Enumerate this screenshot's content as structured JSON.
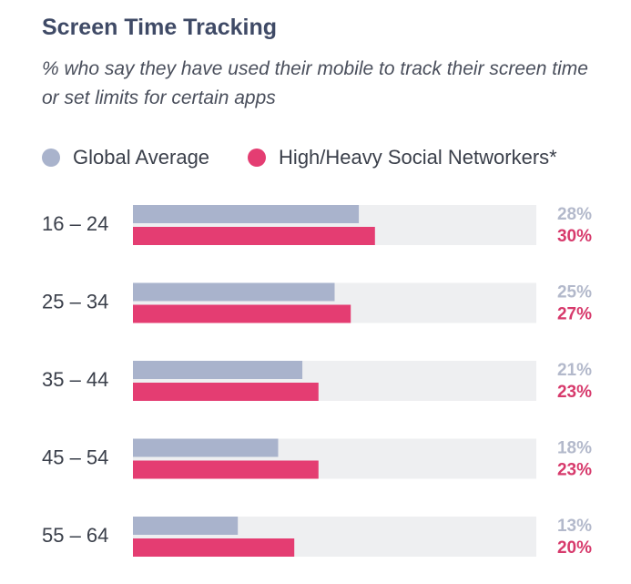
{
  "title": "Screen Time Tracking",
  "subtitle": "% who say they have used their mobile to track their screen time or set limits for certain apps",
  "colors": {
    "global": "#a9b3cc",
    "social": "#e43d72",
    "track": "#eeeff1",
    "global_label": "#b3b9cb",
    "social_label": "#d73a6c",
    "category": "#3a3f4a"
  },
  "legend": [
    {
      "label": "Global Average",
      "color": "#a9b3cc"
    },
    {
      "label": "High/Heavy Social Networkers*",
      "color": "#e43d72"
    }
  ],
  "chart_data": {
    "type": "bar",
    "orientation": "horizontal",
    "categories": [
      "16 – 24",
      "25 – 34",
      "35 – 44",
      "45 – 54",
      "55 – 64"
    ],
    "series": [
      {
        "name": "Global Average",
        "values": [
          28,
          25,
          21,
          18,
          13
        ],
        "labels": [
          "28%",
          "25%",
          "21%",
          "18%",
          "13%"
        ]
      },
      {
        "name": "High/Heavy Social Networkers*",
        "values": [
          30,
          27,
          23,
          23,
          20
        ],
        "labels": [
          "30%",
          "27%",
          "23%",
          "23%",
          "20%"
        ]
      }
    ],
    "xlim": [
      0,
      50
    ],
    "grid": false,
    "legend_position": "top-left"
  }
}
